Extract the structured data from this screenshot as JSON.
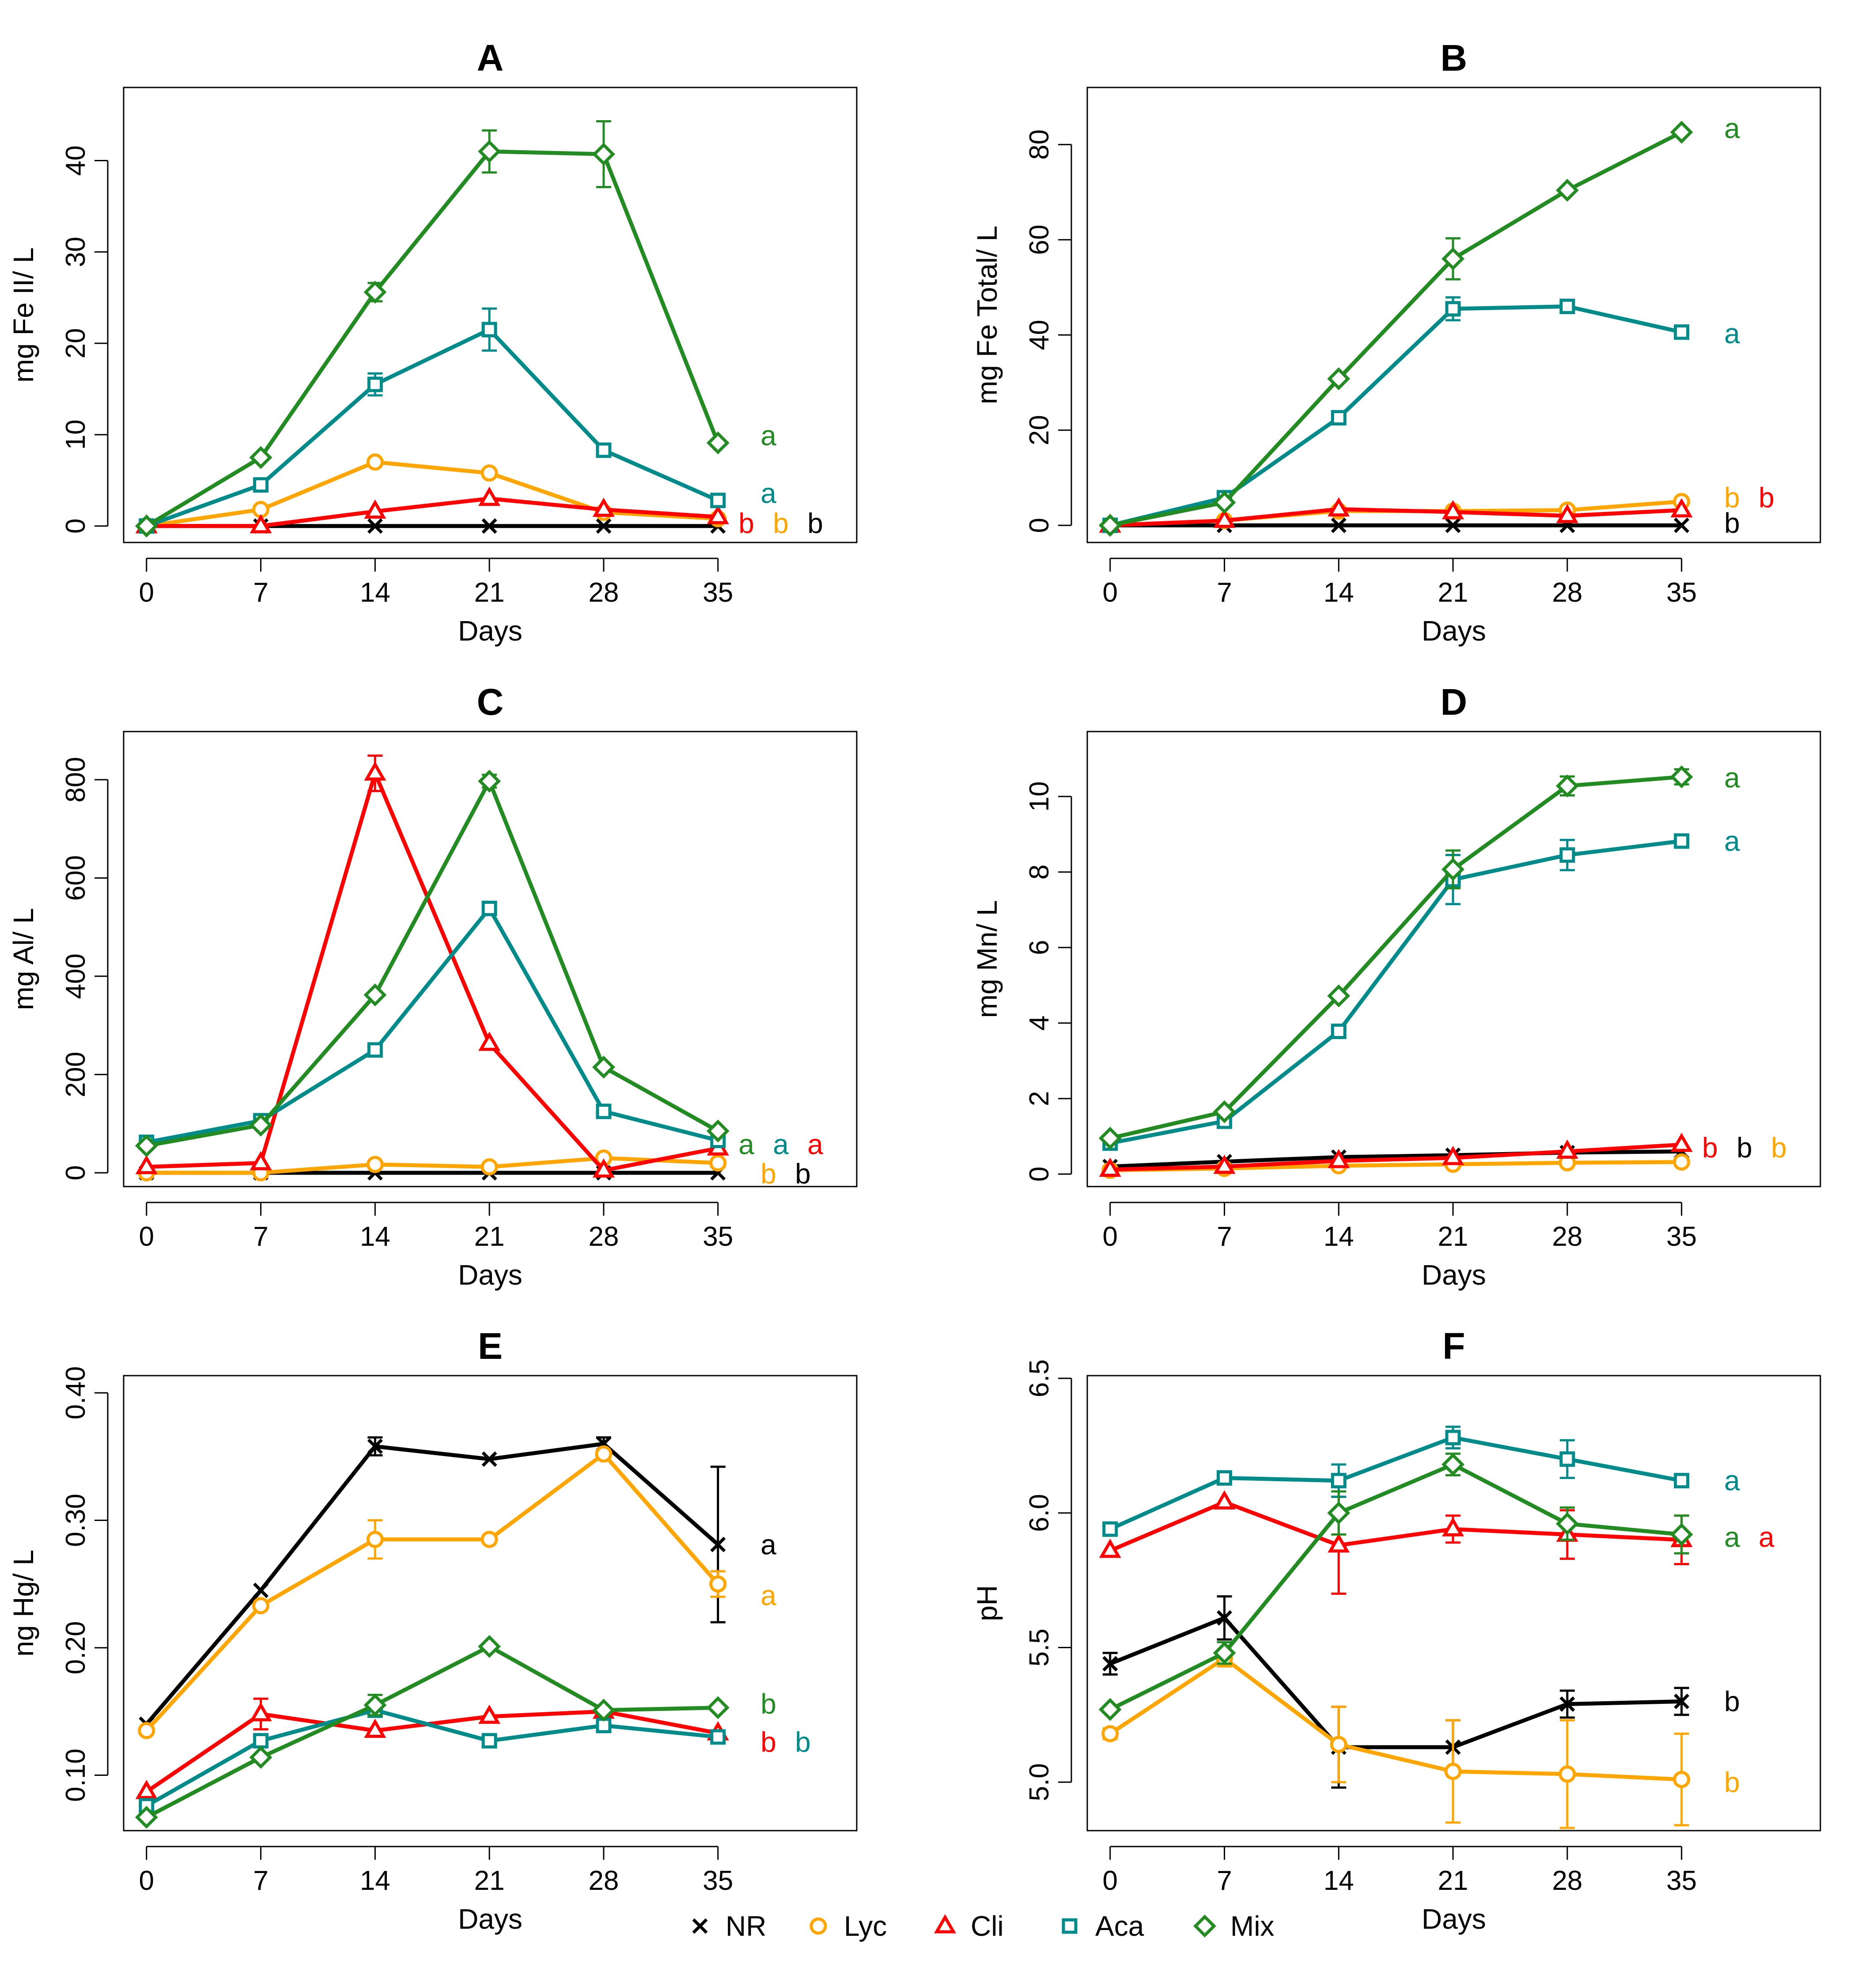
{
  "legend": {
    "items": [
      {
        "name": "NR",
        "color": "#000000",
        "marker": "cross"
      },
      {
        "name": "Lyc",
        "color": "#FFA500",
        "marker": "circle"
      },
      {
        "name": "Cli",
        "color": "#FF0000",
        "marker": "triangle"
      },
      {
        "name": "Aca",
        "color": "#008B8B",
        "marker": "square"
      },
      {
        "name": "Mix",
        "color": "#228B22",
        "marker": "diamond"
      }
    ]
  },
  "chart_data": [
    {
      "panel": "A",
      "type": "line",
      "title": "A",
      "xlabel": "Days",
      "ylabel": "mg Fe II/ L",
      "x": [
        0,
        7,
        14,
        21,
        28,
        35
      ],
      "xlim": [
        -1.4,
        43.5
      ],
      "ylim": [
        -1.8,
        48.0
      ],
      "yticks": [
        0,
        10,
        20,
        30,
        40
      ],
      "series": [
        {
          "name": "NR",
          "values": [
            0,
            0,
            0,
            0,
            0,
            0
          ],
          "err": [
            0,
            0,
            0,
            0,
            0,
            0
          ]
        },
        {
          "name": "Lyc",
          "values": [
            0,
            1.8,
            7.0,
            5.8,
            1.5,
            0.8
          ],
          "err": [
            0,
            0,
            0,
            0,
            0,
            0
          ]
        },
        {
          "name": "Cli",
          "values": [
            0,
            0,
            1.6,
            3.0,
            1.8,
            1.0
          ],
          "err": [
            0,
            0,
            0,
            0,
            0,
            0
          ]
        },
        {
          "name": "Aca",
          "values": [
            0,
            4.5,
            15.5,
            21.5,
            8.3,
            2.8
          ],
          "err": [
            0,
            0,
            1.2,
            2.3,
            0,
            0
          ]
        },
        {
          "name": "Mix",
          "values": [
            0,
            7.5,
            25.6,
            41.0,
            40.7,
            9.1
          ],
          "err": [
            0,
            0,
            1.0,
            2.3,
            3.6,
            0
          ]
        }
      ],
      "annotations": [
        {
          "text": "a",
          "series": "Mix",
          "y": 9.9
        },
        {
          "text": "a",
          "series": "Aca",
          "y": 3.6
        },
        {
          "text": "b",
          "series": "Cli",
          "y": 0.3
        },
        {
          "text": "b",
          "series": "Lyc",
          "y": 0.3
        },
        {
          "text": "b",
          "series": "NR",
          "y": 0.3
        }
      ]
    },
    {
      "panel": "B",
      "type": "line",
      "title": "B",
      "xlabel": "Days",
      "ylabel": "mg Fe Total/ L",
      "x": [
        0,
        7,
        14,
        21,
        28,
        35
      ],
      "xlim": [
        -1.4,
        43.5
      ],
      "ylim": [
        -3.6,
        92.0
      ],
      "yticks": [
        0,
        20,
        40,
        60,
        80
      ],
      "series": [
        {
          "name": "NR",
          "values": [
            0,
            0,
            0,
            0,
            0,
            0
          ],
          "err": [
            0,
            0,
            0,
            0,
            0,
            0
          ]
        },
        {
          "name": "Lyc",
          "values": [
            0,
            1.0,
            3.0,
            3.0,
            3.2,
            5.0
          ],
          "err": [
            0,
            0,
            0,
            0,
            0,
            0
          ]
        },
        {
          "name": "Cli",
          "values": [
            0,
            1.0,
            3.4,
            2.8,
            2.0,
            3.2
          ],
          "err": [
            0,
            0,
            0,
            0,
            0,
            0
          ]
        },
        {
          "name": "Aca",
          "values": [
            0,
            5.8,
            22.6,
            45.5,
            46.0,
            40.6
          ],
          "err": [
            0,
            0,
            0,
            2.4,
            0,
            0
          ]
        },
        {
          "name": "Mix",
          "values": [
            0,
            4.8,
            30.8,
            56.0,
            70.4,
            82.6
          ],
          "err": [
            0,
            0,
            0,
            4.3,
            0,
            0
          ]
        }
      ],
      "annotations": [
        {
          "text": "a",
          "series": "Mix",
          "y": 83.4
        },
        {
          "text": "a",
          "series": "Aca",
          "y": 40.3
        },
        {
          "text": "b",
          "series": "Lyc",
          "y": 5.8
        },
        {
          "text": "b",
          "series": "Cli",
          "y": 5.8
        },
        {
          "text": "b",
          "series": "NR",
          "y": 0.5
        }
      ]
    },
    {
      "panel": "C",
      "type": "line",
      "title": "C",
      "xlabel": "Days",
      "ylabel": "mg Al/ L",
      "x": [
        0,
        7,
        14,
        21,
        28,
        35
      ],
      "xlim": [
        -1.4,
        43.5
      ],
      "ylim": [
        -28.0,
        898.0
      ],
      "yticks": [
        0,
        200,
        400,
        600,
        800
      ],
      "series": [
        {
          "name": "NR",
          "values": [
            0,
            0,
            0,
            0,
            0,
            0
          ],
          "err": [
            0,
            0,
            0,
            0,
            0,
            0
          ]
        },
        {
          "name": "Lyc",
          "values": [
            0,
            0,
            17,
            12,
            30,
            20
          ],
          "err": [
            0,
            0,
            0,
            0,
            0,
            0
          ]
        },
        {
          "name": "Cli",
          "values": [
            12,
            20,
            813,
            263,
            5,
            50
          ],
          "err": [
            0,
            0,
            36,
            0,
            0,
            0
          ]
        },
        {
          "name": "Aca",
          "values": [
            62,
            106,
            250,
            538,
            125,
            66
          ],
          "err": [
            0,
            0,
            0,
            0,
            0,
            0
          ]
        },
        {
          "name": "Mix",
          "values": [
            55,
            97,
            362,
            797,
            215,
            85
          ],
          "err": [
            0,
            0,
            0,
            13,
            0,
            0
          ]
        }
      ],
      "annotations": [
        {
          "text": "a",
          "series": "Mix",
          "y": 58
        },
        {
          "text": "a",
          "series": "Aca",
          "y": 58
        },
        {
          "text": "a",
          "series": "Cli",
          "y": 58
        },
        {
          "text": "b",
          "series": "Lyc",
          "y": -2
        },
        {
          "text": "b",
          "series": "NR",
          "y": -2
        }
      ]
    },
    {
      "panel": "D",
      "type": "line",
      "title": "D",
      "xlabel": "Days",
      "ylabel": "mg Mn/ L",
      "x": [
        0,
        7,
        14,
        21,
        28,
        35
      ],
      "xlim": [
        -1.4,
        43.5
      ],
      "ylim": [
        -0.33,
        11.72
      ],
      "yticks": [
        0,
        2,
        4,
        6,
        8,
        10
      ],
      "series": [
        {
          "name": "NR",
          "values": [
            0.2,
            0.33,
            0.45,
            0.5,
            0.57,
            0.6
          ],
          "err": [
            0,
            0,
            0,
            0,
            0,
            0
          ]
        },
        {
          "name": "Lyc",
          "values": [
            0.1,
            0.15,
            0.22,
            0.26,
            0.3,
            0.32
          ],
          "err": [
            0,
            0,
            0,
            0,
            0,
            0
          ]
        },
        {
          "name": "Cli",
          "values": [
            0.12,
            0.2,
            0.35,
            0.43,
            0.6,
            0.78
          ],
          "err": [
            0,
            0,
            0,
            0,
            0,
            0
          ]
        },
        {
          "name": "Aca",
          "values": [
            0.82,
            1.4,
            3.78,
            7.8,
            8.45,
            8.82
          ],
          "err": [
            0,
            0,
            0,
            0.65,
            0.4,
            0
          ]
        },
        {
          "name": "Mix",
          "values": [
            0.95,
            1.65,
            4.72,
            8.07,
            10.28,
            10.52
          ],
          "err": [
            0,
            0,
            0,
            0.5,
            0.25,
            0.2
          ]
        }
      ],
      "annotations": [
        {
          "text": "a",
          "series": "Mix",
          "y": 10.5
        },
        {
          "text": "a",
          "series": "Aca",
          "y": 8.82
        },
        {
          "text": "b",
          "series": "Cli",
          "y": 0.7
        },
        {
          "text": "b",
          "series": "NR",
          "y": 0.7
        },
        {
          "text": "b",
          "series": "Lyc",
          "y": 0.7
        }
      ]
    },
    {
      "panel": "E",
      "type": "line",
      "title": "E",
      "xlabel": "Days",
      "ylabel": "ng Hg/ L",
      "x": [
        0,
        7,
        14,
        21,
        28,
        35
      ],
      "xlim": [
        -1.4,
        43.5
      ],
      "ylim": [
        0.0565,
        0.4135
      ],
      "yticks": [
        0.1,
        0.2,
        0.3,
        0.4
      ],
      "series": [
        {
          "name": "NR",
          "values": [
            0.14,
            0.245,
            0.358,
            0.348,
            0.36,
            0.281
          ],
          "err": [
            0,
            0,
            0.007,
            0,
            0.005,
            0.061
          ]
        },
        {
          "name": "Lyc",
          "values": [
            0.135,
            0.233,
            0.285,
            0.285,
            0.352,
            0.25
          ],
          "err": [
            0,
            0,
            0.015,
            0,
            0,
            0.01
          ]
        },
        {
          "name": "Cli",
          "values": [
            0.087,
            0.148,
            0.135,
            0.146,
            0.15,
            0.133
          ],
          "err": [
            0,
            0.012,
            0,
            0,
            0,
            0
          ]
        },
        {
          "name": "Aca",
          "values": [
            0.076,
            0.127,
            0.151,
            0.127,
            0.139,
            0.13
          ],
          "err": [
            0,
            0,
            0,
            0,
            0,
            0
          ]
        },
        {
          "name": "Mix",
          "values": [
            0.067,
            0.114,
            0.155,
            0.201,
            0.151,
            0.153
          ],
          "err": [
            0,
            0,
            0.008,
            0,
            0,
            0
          ]
        }
      ],
      "annotations": [
        {
          "text": "a",
          "series": "NR",
          "y": 0.281
        },
        {
          "text": "a",
          "series": "Lyc",
          "y": 0.241
        },
        {
          "text": "b",
          "series": "Mix",
          "y": 0.156
        },
        {
          "text": "b",
          "series": "Cli",
          "y": 0.126
        },
        {
          "text": "b",
          "series": "Aca",
          "y": 0.126
        }
      ]
    },
    {
      "panel": "F",
      "type": "line",
      "title": "F",
      "xlabel": "Days",
      "ylabel": "pH",
      "x": [
        0,
        7,
        14,
        21,
        28,
        35
      ],
      "xlim": [
        -1.4,
        43.5
      ],
      "ylim": [
        4.82,
        6.51
      ],
      "yticks": [
        5.0,
        5.5,
        6.0,
        6.5
      ],
      "series": [
        {
          "name": "NR",
          "values": [
            5.44,
            5.61,
            5.13,
            5.13,
            5.29,
            5.3
          ],
          "err": [
            0.04,
            0.08,
            0.15,
            0.1,
            0.05,
            0.05
          ]
        },
        {
          "name": "Lyc",
          "values": [
            5.18,
            5.46,
            5.14,
            5.04,
            5.03,
            5.01
          ],
          "err": [
            0.02,
            0.03,
            0.14,
            0.19,
            0.2,
            0.17
          ]
        },
        {
          "name": "Cli",
          "values": [
            5.86,
            6.04,
            5.88,
            5.94,
            5.92,
            5.9
          ],
          "err": [
            0,
            0,
            0.18,
            0.05,
            0.09,
            0.09
          ]
        },
        {
          "name": "Aca",
          "values": [
            5.94,
            6.13,
            6.12,
            6.28,
            6.2,
            6.12
          ],
          "err": [
            0,
            0,
            0.06,
            0.04,
            0.07,
            0
          ]
        },
        {
          "name": "Mix",
          "values": [
            5.27,
            5.48,
            6.0,
            6.18,
            5.96,
            5.92
          ],
          "err": [
            0,
            0.04,
            0.08,
            0.04,
            0.06,
            0.07
          ]
        }
      ],
      "annotations": [
        {
          "text": "a",
          "series": "Aca",
          "y": 6.12
        },
        {
          "text": "a",
          "series": "Mix",
          "y": 5.91
        },
        {
          "text": "a",
          "series": "Cli",
          "y": 5.91
        },
        {
          "text": "b",
          "series": "NR",
          "y": 5.3
        },
        {
          "text": "b",
          "series": "Lyc",
          "y": 5.0
        }
      ]
    }
  ]
}
